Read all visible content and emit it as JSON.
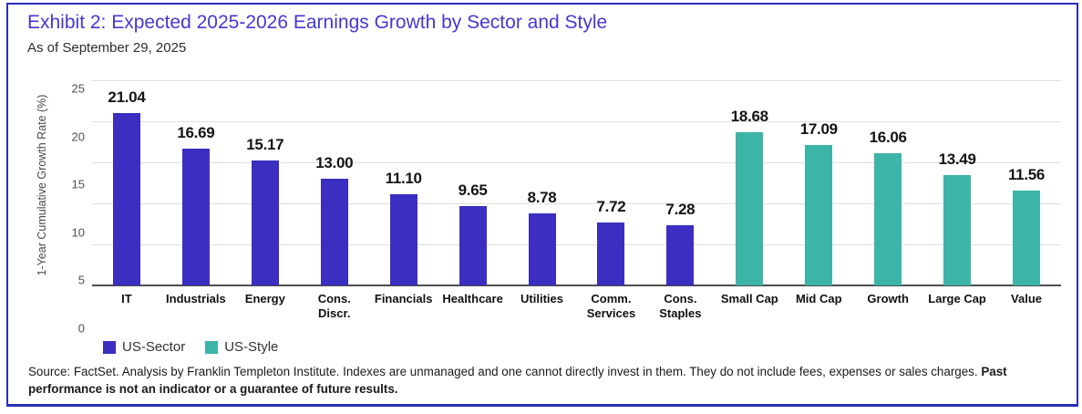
{
  "card": {
    "title": "Exhibit 2: Expected 2025-2026 Earnings Growth by Sector and Style",
    "subtitle": "As of September 29, 2025"
  },
  "chart_data": {
    "type": "bar",
    "title": "Exhibit 2: Expected 2025-2026 Earnings Growth by Sector and Style",
    "subtitle": "As of September 29, 2025",
    "xlabel": "",
    "ylabel": "1-Year Cumulative Growth Rate (%)",
    "ylim": [
      0,
      25
    ],
    "yticks": [
      "25",
      "20",
      "15",
      "10",
      "5",
      "0"
    ],
    "grid": true,
    "legend_position": "bottom-left",
    "categories": [
      "IT",
      "Industrials",
      "Energy",
      "Cons. Discr.",
      "Financials",
      "Healthcare",
      "Utilities",
      "Comm. Services",
      "Cons. Staples",
      "Small Cap",
      "Mid Cap",
      "Growth",
      "Large Cap",
      "Value"
    ],
    "category_display": [
      "IT",
      "Industrials",
      "Energy",
      "Cons.\nDiscr.",
      "Financials",
      "Healthcare",
      "Utilities",
      "Comm.\nServices",
      "Cons.\nStaples",
      "Small Cap",
      "Mid Cap",
      "Growth",
      "Large Cap",
      "Value"
    ],
    "values": [
      21.04,
      16.69,
      15.17,
      13.0,
      11.1,
      9.65,
      8.78,
      7.72,
      7.28,
      18.68,
      17.09,
      16.06,
      13.49,
      11.56
    ],
    "value_labels": [
      "21.04",
      "16.69",
      "15.17",
      "13.00",
      "11.10",
      "9.65",
      "8.78",
      "7.72",
      "7.28",
      "18.68",
      "17.09",
      "16.06",
      "13.49",
      "11.56"
    ],
    "groups": [
      "US-Sector",
      "US-Sector",
      "US-Sector",
      "US-Sector",
      "US-Sector",
      "US-Sector",
      "US-Sector",
      "US-Sector",
      "US-Sector",
      "US-Style",
      "US-Style",
      "US-Style",
      "US-Style",
      "US-Style"
    ],
    "series": [
      {
        "name": "US-Sector",
        "color": "#3b2ec0"
      },
      {
        "name": "US-Style",
        "color": "#3cb4a7"
      }
    ]
  },
  "legend": {
    "items": [
      {
        "label": "US-Sector",
        "color": "#3b2ec0"
      },
      {
        "label": "US-Style",
        "color": "#3cb4a7"
      }
    ]
  },
  "source": {
    "text": "Source: FactSet. Analysis by Franklin Templeton Institute. Indexes are unmanaged and one cannot directly invest in them. They do not include fees, expenses or sales charges. ",
    "bold": "Past performance is not an indicator or a guarantee of future results."
  },
  "colors": {
    "accent_title": "#4438d2",
    "card_border": "#2b2fb8",
    "sector_bar": "#3b2ec0",
    "style_bar": "#3cb4a7",
    "baseline": "#4d4d4d",
    "gridline": "#dedede"
  }
}
